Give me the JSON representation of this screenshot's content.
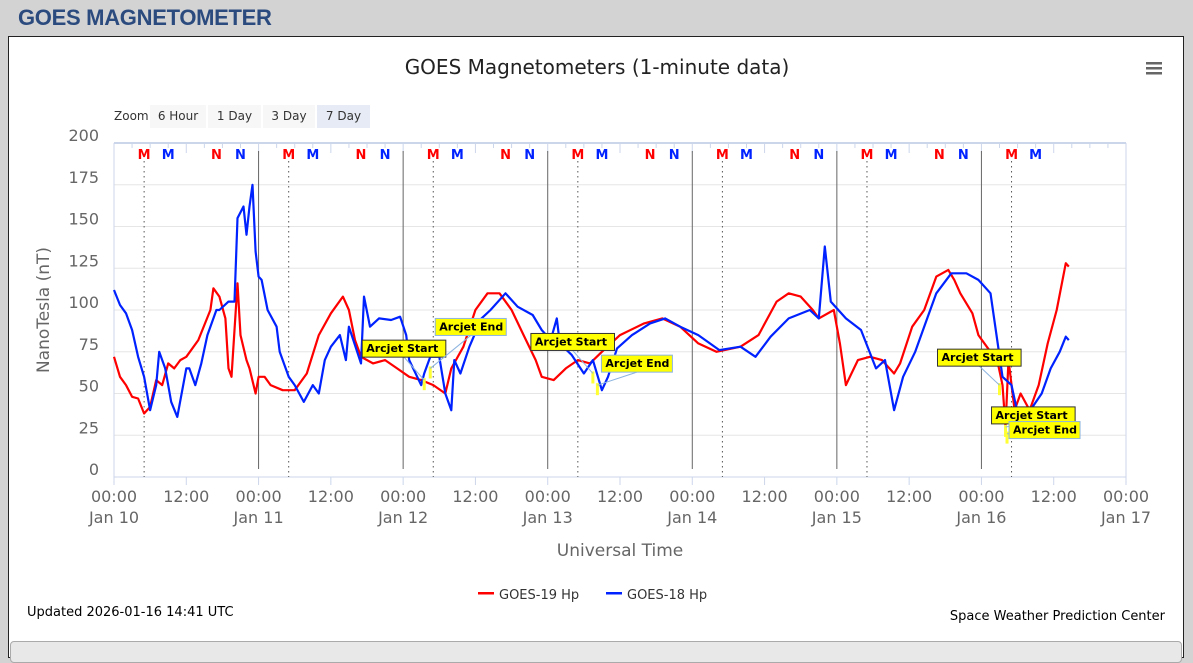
{
  "page_header": "GOES MAGNETOMETER",
  "menu_icon": "hamburger-menu-icon",
  "zoom": {
    "label": "Zoom",
    "buttons": [
      "6 Hour",
      "1 Day",
      "3 Day",
      "7 Day"
    ],
    "selected": "7 Day"
  },
  "footer": {
    "updated": "Updated 2026-01-16 14:41 UTC",
    "credit": "Space Weather Prediction Center"
  },
  "chart_data": {
    "type": "line",
    "title": "GOES Magnetometers (1-minute data)",
    "xlabel": "Universal Time",
    "ylabel": "NanoTesla (nT)",
    "xlim": [
      "2026-01-10T00:00",
      "2026-01-17T00:00"
    ],
    "ylim": [
      0,
      200
    ],
    "yticks": [
      "0",
      "25",
      "50",
      "75",
      "100",
      "125",
      "150",
      "175",
      "200"
    ],
    "xticks": [
      {
        "time": "00:00",
        "date": "Jan 10"
      },
      {
        "time": "12:00",
        "date": ""
      },
      {
        "time": "00:00",
        "date": "Jan 11"
      },
      {
        "time": "12:00",
        "date": ""
      },
      {
        "time": "00:00",
        "date": "Jan 12"
      },
      {
        "time": "12:00",
        "date": ""
      },
      {
        "time": "00:00",
        "date": "Jan 13"
      },
      {
        "time": "12:00",
        "date": ""
      },
      {
        "time": "00:00",
        "date": "Jan 14"
      },
      {
        "time": "12:00",
        "date": ""
      },
      {
        "time": "00:00",
        "date": "Jan 15"
      },
      {
        "time": "12:00",
        "date": ""
      },
      {
        "time": "00:00",
        "date": "Jan 16"
      },
      {
        "time": "12:00",
        "date": ""
      },
      {
        "time": "00:00",
        "date": "Jan 17"
      }
    ],
    "grid": true,
    "legend_position": "bottom-center",
    "series": [
      {
        "name": "GOES-19 Hp",
        "color": "#ff0000",
        "points": [
          [
            "2026-01-10T00:00",
            72
          ],
          [
            "2026-01-10T01:00",
            60
          ],
          [
            "2026-01-10T02:00",
            55
          ],
          [
            "2026-01-10T03:00",
            48
          ],
          [
            "2026-01-10T04:00",
            47
          ],
          [
            "2026-01-10T05:00",
            38
          ],
          [
            "2026-01-10T06:00",
            42
          ],
          [
            "2026-01-10T07:00",
            58
          ],
          [
            "2026-01-10T08:00",
            55
          ],
          [
            "2026-01-10T09:00",
            68
          ],
          [
            "2026-01-10T10:00",
            65
          ],
          [
            "2026-01-10T11:00",
            70
          ],
          [
            "2026-01-10T12:00",
            72
          ],
          [
            "2026-01-10T14:00",
            82
          ],
          [
            "2026-01-10T16:00",
            100
          ],
          [
            "2026-01-10T16:30",
            113
          ],
          [
            "2026-01-10T17:30",
            108
          ],
          [
            "2026-01-10T18:30",
            95
          ],
          [
            "2026-01-10T19:00",
            65
          ],
          [
            "2026-01-10T19:30",
            60
          ],
          [
            "2026-01-10T20:30",
            116
          ],
          [
            "2026-01-10T21:00",
            85
          ],
          [
            "2026-01-10T22:00",
            70
          ],
          [
            "2026-01-10T22:30",
            65
          ],
          [
            "2026-01-10T23:30",
            50
          ],
          [
            "2026-01-11T00:00",
            60
          ],
          [
            "2026-01-11T01:00",
            60
          ],
          [
            "2026-01-11T02:00",
            55
          ],
          [
            "2026-01-11T04:00",
            52
          ],
          [
            "2026-01-11T06:00",
            52
          ],
          [
            "2026-01-11T08:00",
            62
          ],
          [
            "2026-01-11T10:00",
            85
          ],
          [
            "2026-01-11T12:00",
            98
          ],
          [
            "2026-01-11T14:00",
            108
          ],
          [
            "2026-01-11T15:00",
            100
          ],
          [
            "2026-01-11T16:00",
            82
          ],
          [
            "2026-01-11T17:00",
            72
          ],
          [
            "2026-01-11T19:00",
            68
          ],
          [
            "2026-01-11T21:00",
            70
          ],
          [
            "2026-01-11T23:00",
            65
          ],
          [
            "2026-01-12T01:00",
            60
          ],
          [
            "2026-01-12T03:00",
            58
          ],
          [
            "2026-01-12T05:00",
            55
          ],
          [
            "2026-01-12T07:00",
            50
          ],
          [
            "2026-01-12T08:00",
            65
          ],
          [
            "2026-01-12T10:00",
            78
          ],
          [
            "2026-01-12T12:00",
            100
          ],
          [
            "2026-01-12T14:00",
            110
          ],
          [
            "2026-01-12T16:00",
            110
          ],
          [
            "2026-01-12T18:00",
            100
          ],
          [
            "2026-01-12T20:00",
            85
          ],
          [
            "2026-01-12T22:00",
            70
          ],
          [
            "2026-01-12T23:00",
            60
          ],
          [
            "2026-01-13T01:00",
            58
          ],
          [
            "2026-01-13T03:00",
            65
          ],
          [
            "2026-01-13T05:00",
            70
          ],
          [
            "2026-01-13T07:00",
            68
          ],
          [
            "2026-01-13T09:00",
            75
          ],
          [
            "2026-01-13T12:00",
            85
          ],
          [
            "2026-01-13T16:00",
            92
          ],
          [
            "2026-01-13T19:00",
            95
          ],
          [
            "2026-01-13T22:00",
            90
          ],
          [
            "2026-01-14T01:00",
            80
          ],
          [
            "2026-01-14T04:00",
            75
          ],
          [
            "2026-01-14T08:00",
            78
          ],
          [
            "2026-01-14T11:00",
            85
          ],
          [
            "2026-01-14T14:00",
            105
          ],
          [
            "2026-01-14T16:00",
            110
          ],
          [
            "2026-01-14T18:00",
            108
          ],
          [
            "2026-01-14T20:00",
            100
          ],
          [
            "2026-01-14T21:00",
            95
          ],
          [
            "2026-01-14T23:30",
            100
          ],
          [
            "2026-01-15T00:30",
            80
          ],
          [
            "2026-01-15T01:30",
            55
          ],
          [
            "2026-01-15T03:30",
            70
          ],
          [
            "2026-01-15T05:30",
            72
          ],
          [
            "2026-01-15T07:30",
            70
          ],
          [
            "2026-01-15T09:30",
            62
          ],
          [
            "2026-01-15T10:30",
            68
          ],
          [
            "2026-01-15T12:30",
            90
          ],
          [
            "2026-01-15T14:30",
            100
          ],
          [
            "2026-01-15T16:30",
            120
          ],
          [
            "2026-01-15T18:30",
            124
          ],
          [
            "2026-01-15T19:30",
            118
          ],
          [
            "2026-01-15T20:30",
            110
          ],
          [
            "2026-01-15T22:30",
            98
          ],
          [
            "2026-01-15T23:30",
            85
          ],
          [
            "2026-01-16T01:30",
            75
          ],
          [
            "2026-01-16T02:30",
            72
          ],
          [
            "2026-01-16T03:30",
            55
          ],
          [
            "2026-01-16T04:00",
            30
          ],
          [
            "2026-01-16T04:30",
            70
          ],
          [
            "2026-01-16T05:30",
            40
          ],
          [
            "2026-01-16T06:30",
            50
          ],
          [
            "2026-01-16T08:00",
            40
          ],
          [
            "2026-01-16T09:30",
            55
          ],
          [
            "2026-01-16T11:00",
            80
          ],
          [
            "2026-01-16T12:30",
            100
          ],
          [
            "2026-01-16T14:00",
            128
          ],
          [
            "2026-01-16T14:30",
            126
          ]
        ]
      },
      {
        "name": "GOES-18 Hp",
        "color": "#0022ff",
        "points": [
          [
            "2026-01-10T00:00",
            112
          ],
          [
            "2026-01-10T01:00",
            103
          ],
          [
            "2026-01-10T02:00",
            98
          ],
          [
            "2026-01-10T03:00",
            88
          ],
          [
            "2026-01-10T04:00",
            72
          ],
          [
            "2026-01-10T05:00",
            60
          ],
          [
            "2026-01-10T06:00",
            40
          ],
          [
            "2026-01-10T07:00",
            55
          ],
          [
            "2026-01-10T07:30",
            75
          ],
          [
            "2026-01-10T08:30",
            65
          ],
          [
            "2026-01-10T09:30",
            45
          ],
          [
            "2026-01-10T10:30",
            36
          ],
          [
            "2026-01-10T12:00",
            65
          ],
          [
            "2026-01-10T12:30",
            65
          ],
          [
            "2026-01-10T13:30",
            55
          ],
          [
            "2026-01-10T14:30",
            68
          ],
          [
            "2026-01-10T15:30",
            85
          ],
          [
            "2026-01-10T17:00",
            100
          ],
          [
            "2026-01-10T17:30",
            100
          ],
          [
            "2026-01-10T19:00",
            105
          ],
          [
            "2026-01-10T20:00",
            105
          ],
          [
            "2026-01-10T20:30",
            155
          ],
          [
            "2026-01-10T21:30",
            162
          ],
          [
            "2026-01-10T22:00",
            145
          ],
          [
            "2026-01-10T22:30",
            162
          ],
          [
            "2026-01-10T23:00",
            175
          ],
          [
            "2026-01-10T23:30",
            135
          ],
          [
            "2026-01-11T00:00",
            120
          ],
          [
            "2026-01-11T00:30",
            118
          ],
          [
            "2026-01-11T01:30",
            100
          ],
          [
            "2026-01-11T03:00",
            90
          ],
          [
            "2026-01-11T03:30",
            75
          ],
          [
            "2026-01-11T05:00",
            60
          ],
          [
            "2026-01-11T06:00",
            55
          ],
          [
            "2026-01-11T07:30",
            45
          ],
          [
            "2026-01-11T09:00",
            55
          ],
          [
            "2026-01-11T10:00",
            50
          ],
          [
            "2026-01-11T11:00",
            70
          ],
          [
            "2026-01-11T12:00",
            78
          ],
          [
            "2026-01-11T13:30",
            85
          ],
          [
            "2026-01-11T14:30",
            70
          ],
          [
            "2026-01-11T15:00",
            90
          ],
          [
            "2026-01-11T17:00",
            68
          ],
          [
            "2026-01-11T17:30",
            108
          ],
          [
            "2026-01-11T18:30",
            90
          ],
          [
            "2026-01-11T20:00",
            95
          ],
          [
            "2026-01-11T22:00",
            94
          ],
          [
            "2026-01-11T23:30",
            96
          ],
          [
            "2026-01-12T00:30",
            85
          ],
          [
            "2026-01-12T01:00",
            70
          ],
          [
            "2026-01-12T03:00",
            55
          ],
          [
            "2026-01-12T03:30",
            62
          ],
          [
            "2026-01-12T04:30",
            72
          ],
          [
            "2026-01-12T06:00",
            72
          ],
          [
            "2026-01-12T07:00",
            50
          ],
          [
            "2026-01-12T08:00",
            40
          ],
          [
            "2026-01-12T08:30",
            70
          ],
          [
            "2026-01-12T09:30",
            62
          ],
          [
            "2026-01-12T11:00",
            78
          ],
          [
            "2026-01-12T13:00",
            95
          ],
          [
            "2026-01-12T14:30",
            100
          ],
          [
            "2026-01-12T17:00",
            110
          ],
          [
            "2026-01-12T19:00",
            102
          ],
          [
            "2026-01-12T21:30",
            97
          ],
          [
            "2026-01-12T23:00",
            88
          ],
          [
            "2026-01-13T00:30",
            82
          ],
          [
            "2026-01-13T01:30",
            95
          ],
          [
            "2026-01-13T02:00",
            80
          ],
          [
            "2026-01-13T04:00",
            73
          ],
          [
            "2026-01-13T06:00",
            62
          ],
          [
            "2026-01-13T07:30",
            70
          ],
          [
            "2026-01-13T09:00",
            52
          ],
          [
            "2026-01-13T10:00",
            60
          ],
          [
            "2026-01-13T11:30",
            77
          ],
          [
            "2026-01-13T14:00",
            85
          ],
          [
            "2026-01-13T17:00",
            92
          ],
          [
            "2026-01-13T19:30",
            95
          ],
          [
            "2026-01-13T22:00",
            90
          ],
          [
            "2026-01-14T01:00",
            85
          ],
          [
            "2026-01-14T04:30",
            76
          ],
          [
            "2026-01-14T08:00",
            78
          ],
          [
            "2026-01-14T10:30",
            72
          ],
          [
            "2026-01-14T13:00",
            84
          ],
          [
            "2026-01-14T16:00",
            95
          ],
          [
            "2026-01-14T19:30",
            100
          ],
          [
            "2026-01-14T21:00",
            95
          ],
          [
            "2026-01-14T22:00",
            138
          ],
          [
            "2026-01-14T23:00",
            105
          ],
          [
            "2026-01-15T01:30",
            95
          ],
          [
            "2026-01-15T04:00",
            88
          ],
          [
            "2026-01-15T06:30",
            65
          ],
          [
            "2026-01-15T08:00",
            70
          ],
          [
            "2026-01-15T09:30",
            40
          ],
          [
            "2026-01-15T11:00",
            60
          ],
          [
            "2026-01-15T13:00",
            75
          ],
          [
            "2026-01-15T15:00",
            95
          ],
          [
            "2026-01-15T16:30",
            110
          ],
          [
            "2026-01-15T19:00",
            122
          ],
          [
            "2026-01-15T21:30",
            122
          ],
          [
            "2026-01-15T23:30",
            118
          ],
          [
            "2026-01-16T01:30",
            110
          ],
          [
            "2026-01-16T03:30",
            60
          ],
          [
            "2026-01-16T05:00",
            55
          ],
          [
            "2026-01-16T06:30",
            30
          ],
          [
            "2026-01-16T08:30",
            42
          ],
          [
            "2026-01-16T10:00",
            50
          ],
          [
            "2026-01-16T11:30",
            65
          ],
          [
            "2026-01-16T13:00",
            75
          ],
          [
            "2026-01-16T14:00",
            84
          ],
          [
            "2026-01-16T14:30",
            82
          ]
        ]
      }
    ],
    "day_markers": [
      {
        "label": "M",
        "color": "#ff0000",
        "time": "05:00"
      },
      {
        "label": "M",
        "color": "#0022ff",
        "time": "09:00"
      },
      {
        "label": "N",
        "color": "#ff0000",
        "time": "17:00"
      },
      {
        "label": "N",
        "color": "#0022ff",
        "time": "21:00"
      }
    ],
    "marker_days": [
      "2026-01-10",
      "2026-01-11",
      "2026-01-12",
      "2026-01-13",
      "2026-01-14",
      "2026-01-15",
      "2026-01-16"
    ],
    "annotations": [
      {
        "label": "Arcjet Start",
        "time": "2026-01-12T03:30",
        "value": 58
      },
      {
        "label": "Arcjet End",
        "time": "2026-01-12T04:30",
        "value": 65
      },
      {
        "label": "Arcjet Start",
        "time": "2026-01-13T07:30",
        "value": 62
      },
      {
        "label": "Arcjet End",
        "time": "2026-01-13T08:15",
        "value": 55
      },
      {
        "label": "Arcjet Start",
        "time": "2026-01-16T03:00",
        "value": 55
      },
      {
        "label": "Arcjet Start",
        "time": "2026-01-16T04:00",
        "value": 30
      },
      {
        "label": "Arcjet End",
        "time": "2026-01-16T04:15",
        "value": 26
      }
    ]
  }
}
